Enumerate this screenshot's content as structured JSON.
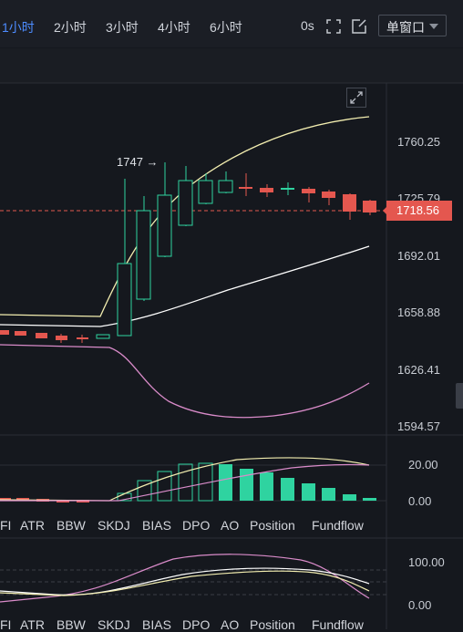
{
  "timeframes": [
    "1小时",
    "2小时",
    "3小时",
    "4小时",
    "6小时"
  ],
  "active_timeframe": "1小时",
  "seconds_label": "0s",
  "window_select": "单窗口",
  "price_axis": [
    "1760.25",
    "1725.79",
    "1692.01",
    "1658.88",
    "1626.41",
    "1594.57"
  ],
  "current_price": "1718.56",
  "annotation": "1747 →",
  "indicator_tabs": [
    "FI",
    "ATR",
    "BBW",
    "SKDJ",
    "BIAS",
    "DPO",
    "AO",
    "Position",
    "Fundflow"
  ],
  "sub1_axis": [
    "20.00",
    "0.00"
  ],
  "sub2_axis": [
    "100.00",
    "0.00"
  ],
  "colors": {
    "up": "#2fd3a0",
    "down": "#e4574f",
    "accent": "#4d8cff",
    "ma_yellow": "#f3eeb0",
    "ma_white": "#ffffff",
    "ma_pink": "#d98bc9"
  },
  "icons": [
    "fullscreen-icon",
    "edit-icon",
    "chevron-down-icon",
    "expand-icon"
  ]
}
